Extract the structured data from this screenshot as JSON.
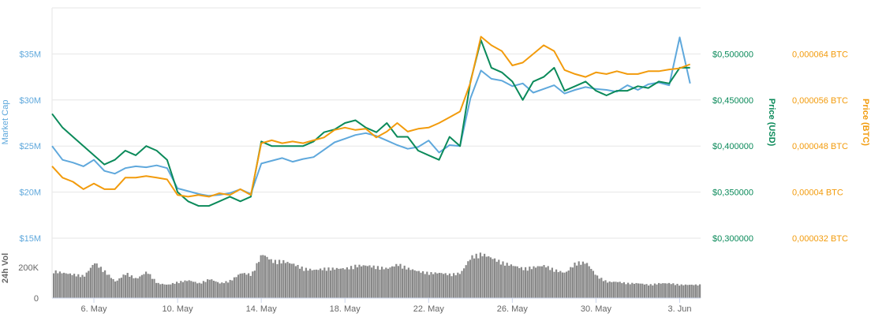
{
  "chart_data": {
    "type": "line",
    "x_dates": [
      "2018-05-04T00:00",
      "2018-06-04T00:00"
    ],
    "x_ticks": [
      {
        "label": "6. May",
        "date": "2018-05-06"
      },
      {
        "label": "10. May",
        "date": "2018-05-10"
      },
      {
        "label": "14. May",
        "date": "2018-05-14"
      },
      {
        "label": "18. May",
        "date": "2018-05-18"
      },
      {
        "label": "22. May",
        "date": "2018-05-22"
      },
      {
        "label": "26. May",
        "date": "2018-05-26"
      },
      {
        "label": "30. May",
        "date": "2018-05-30"
      },
      {
        "label": "3. Jun",
        "date": "2018-06-03"
      }
    ],
    "axes": {
      "market_cap": {
        "label": "Market Cap",
        "color": "#5fa8dc",
        "range": [
          15,
          40
        ],
        "ticks": [
          {
            "v": 15,
            "label": "$15M"
          },
          {
            "v": 20,
            "label": "$20M"
          },
          {
            "v": 25,
            "label": "$25M"
          },
          {
            "v": 30,
            "label": "$30M"
          },
          {
            "v": 35,
            "label": "$35M"
          }
        ]
      },
      "price_usd": {
        "label": "Price (USD)",
        "color": "#0b8a5a",
        "range": [
          0.3,
          0.55
        ],
        "ticks": [
          {
            "v": 0.3,
            "label": "$0,300000"
          },
          {
            "v": 0.35,
            "label": "$0,350000"
          },
          {
            "v": 0.4,
            "label": "$0,400000"
          },
          {
            "v": 0.45,
            "label": "$0,450000"
          },
          {
            "v": 0.5,
            "label": "$0,500000"
          }
        ]
      },
      "price_btc": {
        "label": "Price (BTC)",
        "color": "#f29b0c",
        "range": [
          3.2e-05,
          7.2e-05
        ],
        "ticks": [
          {
            "v": 3.2e-05,
            "label": "0,000032 BTC"
          },
          {
            "v": 4e-05,
            "label": "0,00004 BTC"
          },
          {
            "v": 4.8e-05,
            "label": "0,000048 BTC"
          },
          {
            "v": 5.6e-05,
            "label": "0,000056 BTC"
          },
          {
            "v": 6.4e-05,
            "label": "0,000064 BTC"
          }
        ]
      },
      "volume": {
        "label": "24h Vol",
        "color": "#888888",
        "range": [
          0,
          350
        ],
        "ticks": [
          {
            "v": 0,
            "label": "0"
          },
          {
            "v": 200,
            "label": "200K"
          }
        ]
      }
    },
    "series": [
      {
        "name": "Market Cap",
        "axis": "market_cap",
        "color": "#5fa8dc",
        "unit": "USD millions",
        "points": [
          [
            0,
            25
          ],
          [
            0.5,
            23.5
          ],
          [
            1,
            23.2
          ],
          [
            1.5,
            22.8
          ],
          [
            2,
            23.5
          ],
          [
            2.5,
            22.3
          ],
          [
            3,
            22
          ],
          [
            3.5,
            22.6
          ],
          [
            4,
            22.8
          ],
          [
            4.5,
            22.7
          ],
          [
            5,
            22.9
          ],
          [
            5.5,
            22.6
          ],
          [
            6,
            20.4
          ],
          [
            6.5,
            20.1
          ],
          [
            7,
            19.8
          ],
          [
            7.5,
            19.6
          ],
          [
            8,
            19.7
          ],
          [
            8.5,
            19.9
          ],
          [
            9,
            20.3
          ],
          [
            9.5,
            19.8
          ],
          [
            10,
            23.1
          ],
          [
            10.5,
            23.4
          ],
          [
            11,
            23.7
          ],
          [
            11.5,
            23.3
          ],
          [
            12,
            23.6
          ],
          [
            12.5,
            23.8
          ],
          [
            13,
            24.6
          ],
          [
            13.5,
            25.4
          ],
          [
            14,
            25.8
          ],
          [
            14.5,
            26.2
          ],
          [
            15,
            26.4
          ],
          [
            15.5,
            26.1
          ],
          [
            16,
            25.6
          ],
          [
            16.5,
            25.1
          ],
          [
            17,
            24.7
          ],
          [
            17.5,
            24.9
          ],
          [
            18,
            25.6
          ],
          [
            18.5,
            24.3
          ],
          [
            19,
            25.1
          ],
          [
            19.5,
            25
          ],
          [
            20,
            30.2
          ],
          [
            20.5,
            33.2
          ],
          [
            21,
            32.3
          ],
          [
            21.5,
            32.1
          ],
          [
            22,
            31.5
          ],
          [
            22.5,
            31.8
          ],
          [
            23,
            30.8
          ],
          [
            23.5,
            31.2
          ],
          [
            24,
            31.6
          ],
          [
            24.5,
            30.7
          ],
          [
            25,
            31.1
          ],
          [
            25.5,
            31.4
          ],
          [
            26,
            31.2
          ],
          [
            26.5,
            31.1
          ],
          [
            27,
            30.9
          ],
          [
            27.5,
            31.6
          ],
          [
            28,
            31.1
          ],
          [
            28.5,
            31.7
          ],
          [
            29,
            31.9
          ],
          [
            29.5,
            31.6
          ],
          [
            30,
            36.8
          ],
          [
            30.5,
            31.8
          ]
        ]
      },
      {
        "name": "Price (USD)",
        "axis": "price_usd",
        "color": "#0b8a5a",
        "unit": "USD",
        "points": [
          [
            0,
            0.435
          ],
          [
            0.5,
            0.42
          ],
          [
            1,
            0.41
          ],
          [
            1.5,
            0.4
          ],
          [
            2,
            0.39
          ],
          [
            2.5,
            0.38
          ],
          [
            3,
            0.385
          ],
          [
            3.5,
            0.395
          ],
          [
            4,
            0.39
          ],
          [
            4.5,
            0.4
          ],
          [
            5,
            0.395
          ],
          [
            5.5,
            0.385
          ],
          [
            6,
            0.35
          ],
          [
            6.5,
            0.34
          ],
          [
            7,
            0.335
          ],
          [
            7.5,
            0.335
          ],
          [
            8,
            0.34
          ],
          [
            8.5,
            0.345
          ],
          [
            9,
            0.34
          ],
          [
            9.5,
            0.345
          ],
          [
            10,
            0.405
          ],
          [
            10.5,
            0.4
          ],
          [
            11,
            0.4
          ],
          [
            11.5,
            0.4
          ],
          [
            12,
            0.4
          ],
          [
            12.5,
            0.405
          ],
          [
            13,
            0.415
          ],
          [
            13.5,
            0.418
          ],
          [
            14,
            0.425
          ],
          [
            14.5,
            0.428
          ],
          [
            15,
            0.42
          ],
          [
            15.5,
            0.415
          ],
          [
            16,
            0.425
          ],
          [
            16.5,
            0.41
          ],
          [
            17,
            0.41
          ],
          [
            17.5,
            0.395
          ],
          [
            18,
            0.39
          ],
          [
            18.5,
            0.385
          ],
          [
            19,
            0.41
          ],
          [
            19.5,
            0.4
          ],
          [
            20,
            0.47
          ],
          [
            20.5,
            0.515
          ],
          [
            21,
            0.485
          ],
          [
            21.5,
            0.48
          ],
          [
            22,
            0.47
          ],
          [
            22.5,
            0.45
          ],
          [
            23,
            0.47
          ],
          [
            23.5,
            0.475
          ],
          [
            24,
            0.485
          ],
          [
            24.5,
            0.46
          ],
          [
            25,
            0.465
          ],
          [
            25.5,
            0.47
          ],
          [
            26,
            0.46
          ],
          [
            26.5,
            0.455
          ],
          [
            27,
            0.46
          ],
          [
            27.5,
            0.46
          ],
          [
            28,
            0.465
          ],
          [
            28.5,
            0.463
          ],
          [
            29,
            0.47
          ],
          [
            29.5,
            0.468
          ],
          [
            30,
            0.485
          ],
          [
            30.5,
            0.485
          ]
        ]
      },
      {
        "name": "Price (BTC)",
        "axis": "price_btc",
        "color": "#f29b0c",
        "unit": "BTC",
        "points": [
          [
            0,
            4.45e-05
          ],
          [
            0.5,
            4.25e-05
          ],
          [
            1,
            4.18e-05
          ],
          [
            1.5,
            4.05e-05
          ],
          [
            2,
            4.15e-05
          ],
          [
            2.5,
            4.05e-05
          ],
          [
            3,
            4.05e-05
          ],
          [
            3.5,
            4.25e-05
          ],
          [
            4,
            4.25e-05
          ],
          [
            4.5,
            4.28e-05
          ],
          [
            5,
            4.25e-05
          ],
          [
            5.5,
            4.22e-05
          ],
          [
            6,
            3.95e-05
          ],
          [
            6.5,
            3.92e-05
          ],
          [
            7,
            3.95e-05
          ],
          [
            7.5,
            3.92e-05
          ],
          [
            8,
            3.98e-05
          ],
          [
            8.5,
            3.95e-05
          ],
          [
            9,
            4.05e-05
          ],
          [
            9.5,
            3.95e-05
          ],
          [
            10,
            4.85e-05
          ],
          [
            10.5,
            4.9e-05
          ],
          [
            11,
            4.85e-05
          ],
          [
            11.5,
            4.88e-05
          ],
          [
            12,
            4.85e-05
          ],
          [
            12.5,
            4.9e-05
          ],
          [
            13,
            4.95e-05
          ],
          [
            13.5,
            5.08e-05
          ],
          [
            14,
            5.12e-05
          ],
          [
            14.5,
            5.08e-05
          ],
          [
            15,
            5.1e-05
          ],
          [
            15.5,
            4.95e-05
          ],
          [
            16,
            5.05e-05
          ],
          [
            16.5,
            5.2e-05
          ],
          [
            17,
            5.05e-05
          ],
          [
            17.5,
            5.1e-05
          ],
          [
            18,
            5.12e-05
          ],
          [
            18.5,
            5.2e-05
          ],
          [
            19,
            5.3e-05
          ],
          [
            19.5,
            5.4e-05
          ],
          [
            20,
            5.9e-05
          ],
          [
            20.5,
            6.7e-05
          ],
          [
            21,
            6.55e-05
          ],
          [
            21.5,
            6.45e-05
          ],
          [
            22,
            6.2e-05
          ],
          [
            22.5,
            6.25e-05
          ],
          [
            23,
            6.4e-05
          ],
          [
            23.5,
            6.55e-05
          ],
          [
            24,
            6.45e-05
          ],
          [
            24.5,
            6.12e-05
          ],
          [
            25,
            6.05e-05
          ],
          [
            25.5,
            6e-05
          ],
          [
            26,
            6.08e-05
          ],
          [
            26.5,
            6.05e-05
          ],
          [
            27,
            6.1e-05
          ],
          [
            27.5,
            6.05e-05
          ],
          [
            28,
            6.05e-05
          ],
          [
            28.5,
            6.1e-05
          ],
          [
            29,
            6.1e-05
          ],
          [
            29.5,
            6.13e-05
          ],
          [
            30,
            6.15e-05
          ],
          [
            30.5,
            6.22e-05
          ]
        ]
      },
      {
        "name": "24h Vol",
        "axis": "volume",
        "color": "#888888",
        "unit": "USD thousands",
        "points": [
          [
            0,
            185
          ],
          [
            0.5,
            170
          ],
          [
            1,
            160
          ],
          [
            1.5,
            150
          ],
          [
            2,
            240
          ],
          [
            2.5,
            180
          ],
          [
            3,
            110
          ],
          [
            3.5,
            170
          ],
          [
            4,
            130
          ],
          [
            4.5,
            180
          ],
          [
            5,
            100
          ],
          [
            5.5,
            90
          ],
          [
            6,
            110
          ],
          [
            6.5,
            120
          ],
          [
            7,
            100
          ],
          [
            7.5,
            130
          ],
          [
            8,
            100
          ],
          [
            8.5,
            120
          ],
          [
            9,
            170
          ],
          [
            9.5,
            160
          ],
          [
            10,
            300
          ],
          [
            10.5,
            250
          ],
          [
            11,
            250
          ],
          [
            11.5,
            230
          ],
          [
            12,
            200
          ],
          [
            12.5,
            190
          ],
          [
            13,
            200
          ],
          [
            13.5,
            200
          ],
          [
            14,
            200
          ],
          [
            14.5,
            220
          ],
          [
            15,
            220
          ],
          [
            15.5,
            210
          ],
          [
            16,
            200
          ],
          [
            16.5,
            230
          ],
          [
            17,
            200
          ],
          [
            17.5,
            180
          ],
          [
            18,
            170
          ],
          [
            18.5,
            170
          ],
          [
            19,
            160
          ],
          [
            19.5,
            170
          ],
          [
            20,
            280
          ],
          [
            20.5,
            300
          ],
          [
            21,
            270
          ],
          [
            21.5,
            240
          ],
          [
            22,
            220
          ],
          [
            22.5,
            200
          ],
          [
            23,
            210
          ],
          [
            23.5,
            220
          ],
          [
            24,
            190
          ],
          [
            24.5,
            170
          ],
          [
            25,
            240
          ],
          [
            25.5,
            240
          ],
          [
            26,
            150
          ],
          [
            26.5,
            110
          ],
          [
            27,
            110
          ],
          [
            27.5,
            100
          ],
          [
            28,
            100
          ],
          [
            28.5,
            90
          ],
          [
            29,
            100
          ],
          [
            29.5,
            100
          ],
          [
            30,
            90
          ],
          [
            30.5,
            90
          ]
        ]
      }
    ],
    "grid": true,
    "legend": "none"
  }
}
